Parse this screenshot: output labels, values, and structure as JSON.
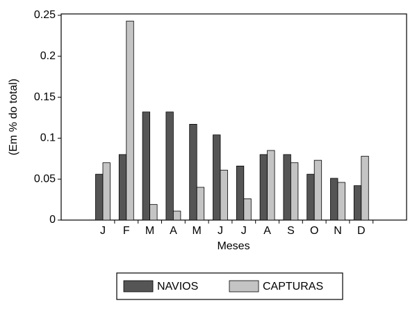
{
  "chart_data": {
    "type": "bar",
    "x_label": "Meses",
    "y_label": "(Em % do total)",
    "categories": [
      "J",
      "F",
      "M",
      "A",
      "M",
      "J",
      "J",
      "A",
      "S",
      "O",
      "N",
      "D"
    ],
    "series": [
      {
        "name": "NAVIOS",
        "color": "#555555",
        "values": [
          0.056,
          0.08,
          0.132,
          0.132,
          0.117,
          0.104,
          0.066,
          0.08,
          0.08,
          0.056,
          0.051,
          0.042
        ]
      },
      {
        "name": "CAPTURAS",
        "color": "#c4c4c4",
        "values": [
          0.07,
          0.243,
          0.019,
          0.011,
          0.04,
          0.061,
          0.026,
          0.085,
          0.07,
          0.073,
          0.046,
          0.078
        ]
      }
    ],
    "ylim": [
      0,
      0.25
    ],
    "yticks": [
      0,
      0.05,
      0.1,
      0.15,
      0.2,
      0.25
    ],
    "grid": false
  }
}
